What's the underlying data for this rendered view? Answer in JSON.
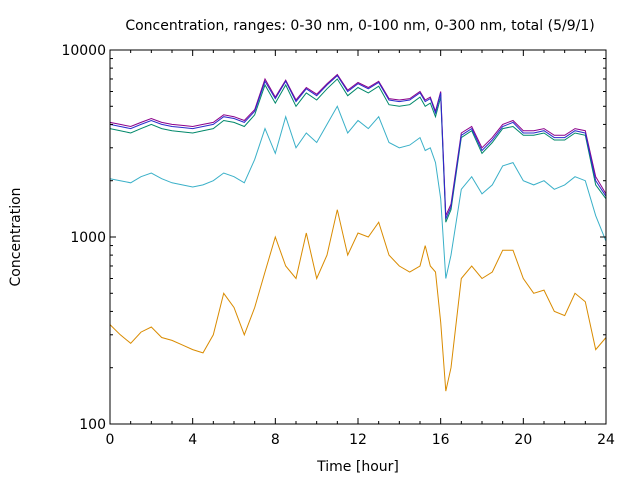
{
  "chart_data": {
    "type": "line",
    "title": "Concentration, ranges: 0-30 nm, 0-100 nm, 0-300 nm, total (5/9/1)",
    "xlabel": "Time [hour]",
    "ylabel": "Concentration",
    "xlim": [
      0,
      24
    ],
    "ylim": [
      100,
      10000
    ],
    "yscale": "log",
    "grid": false,
    "legend": "none",
    "x_ticks": [
      0,
      4,
      8,
      12,
      16,
      20,
      24
    ],
    "y_ticks": [
      100,
      1000,
      10000
    ],
    "x": [
      0,
      0.5,
      1,
      1.5,
      2,
      2.5,
      3,
      3.5,
      4,
      4.5,
      5,
      5.5,
      6,
      6.5,
      7,
      7.5,
      8,
      8.5,
      9,
      9.5,
      10,
      10.5,
      11,
      11.5,
      12,
      12.5,
      13,
      13.5,
      14,
      14.5,
      15,
      15.25,
      15.5,
      15.75,
      16,
      16.25,
      16.5,
      17,
      17.5,
      18,
      18.5,
      19,
      19.5,
      20,
      20.5,
      21,
      21.5,
      22,
      22.5,
      23,
      23.5,
      24
    ],
    "series": [
      {
        "color": "#d98b00",
        "values": [
          340,
          300,
          270,
          310,
          330,
          290,
          280,
          265,
          250,
          240,
          300,
          500,
          420,
          300,
          420,
          650,
          1000,
          700,
          600,
          1050,
          600,
          800,
          1400,
          800,
          1050,
          1000,
          1200,
          800,
          700,
          650,
          700,
          900,
          700,
          650,
          350,
          150,
          200,
          600,
          700,
          600,
          650,
          850,
          850,
          600,
          500,
          520,
          400,
          380,
          500,
          450,
          250,
          290
        ]
      },
      {
        "color": "#3ab0c8",
        "values": [
          2050,
          2000,
          1950,
          2100,
          2200,
          2050,
          1950,
          1900,
          1850,
          1900,
          2000,
          2200,
          2100,
          1950,
          2600,
          3800,
          2800,
          4400,
          3000,
          3600,
          3200,
          4000,
          5000,
          3600,
          4200,
          3800,
          4400,
          3200,
          3000,
          3100,
          3400,
          2900,
          3000,
          2500,
          1600,
          600,
          800,
          1800,
          2100,
          1700,
          1900,
          2400,
          2500,
          2000,
          1900,
          2000,
          1800,
          1900,
          2100,
          2000,
          1300,
          950
        ]
      },
      {
        "color": "#00886a",
        "values": [
          3800,
          3700,
          3600,
          3800,
          4000,
          3800,
          3700,
          3650,
          3600,
          3700,
          3800,
          4200,
          4100,
          3900,
          4500,
          6500,
          5200,
          6500,
          5000,
          5900,
          5400,
          6200,
          7000,
          5700,
          6300,
          5900,
          6400,
          5100,
          5000,
          5100,
          5600,
          5000,
          5200,
          4400,
          5600,
          1200,
          1400,
          3400,
          3700,
          2800,
          3200,
          3800,
          3900,
          3500,
          3500,
          3600,
          3300,
          3300,
          3600,
          3500,
          1900,
          1600
        ]
      },
      {
        "color": "#8b008b",
        "values": [
          4100,
          4000,
          3900,
          4100,
          4300,
          4100,
          4000,
          3950,
          3900,
          4000,
          4100,
          4500,
          4400,
          4200,
          4800,
          7000,
          5600,
          6900,
          5400,
          6300,
          5800,
          6600,
          7400,
          6100,
          6700,
          6300,
          6800,
          5500,
          5400,
          5500,
          6000,
          5400,
          5600,
          4700,
          6000,
          1300,
          1500,
          3600,
          3900,
          3000,
          3400,
          4000,
          4200,
          3700,
          3700,
          3800,
          3500,
          3500,
          3800,
          3700,
          2100,
          1700
        ]
      },
      {
        "color": "#2b2bcc",
        "values": [
          4000,
          3900,
          3800,
          4000,
          4200,
          4000,
          3900,
          3850,
          3800,
          3900,
          4000,
          4400,
          4300,
          4100,
          4700,
          6800,
          5500,
          6800,
          5300,
          6200,
          5700,
          6500,
          7300,
          6000,
          6600,
          6200,
          6700,
          5400,
          5300,
          5400,
          5900,
          5300,
          5500,
          4600,
          5900,
          1250,
          1450,
          3500,
          3800,
          2900,
          3300,
          3900,
          4100,
          3600,
          3600,
          3700,
          3400,
          3400,
          3700,
          3600,
          2000,
          1650
        ]
      }
    ]
  }
}
